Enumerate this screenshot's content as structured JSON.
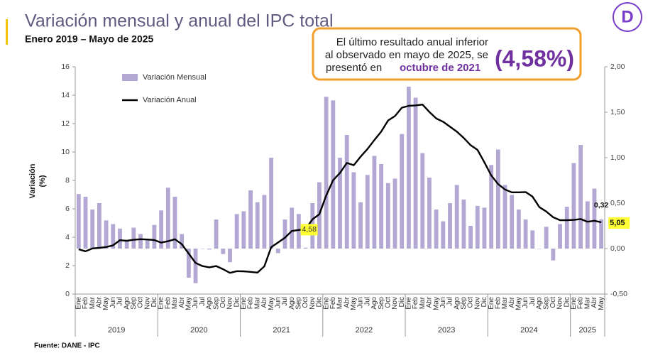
{
  "chart_data": {
    "type": "bar_line",
    "title": "Variación mensual y anual del IPC total",
    "subtitle": "Enero 2019 – Mayo de 2025",
    "y_axis_label": [
      "Variación",
      "(%)"
    ],
    "source": "Fuente: DANE - IPC",
    "logo": "D",
    "callout": {
      "lines": [
        "El último resultado anual inferior",
        "al observado en mayo de 2025, se",
        "presentó en"
      ],
      "highlight": "octubre de 2021",
      "big": "(4,58%)"
    },
    "categories": [
      "Ene",
      "Feb",
      "Mar",
      "Abr",
      "May",
      "Jun",
      "Jul",
      "Ago",
      "Sep",
      "Oct",
      "Nov",
      "Dic",
      "Ene",
      "Feb",
      "Mar",
      "Abr",
      "May",
      "Jun",
      "Jul",
      "Ago",
      "Sep",
      "Oct",
      "Nov",
      "Dic",
      "Ene",
      "Feb",
      "Mar",
      "Abr",
      "May",
      "Jun",
      "Jul",
      "Ago",
      "Sep",
      "Oct",
      "Nov",
      "Dic",
      "Ene",
      "Feb",
      "Mar",
      "Abr",
      "May",
      "Jun",
      "Jul",
      "Ago",
      "Sep",
      "Oct",
      "Nov",
      "Dic",
      "Ene",
      "Feb",
      "Mar",
      "Abr",
      "May",
      "Jun",
      "Jul",
      "Ago",
      "Sep",
      "Oct",
      "Nov",
      "Dic",
      "Ene",
      "Feb",
      "Mar",
      "Abr",
      "May",
      "Jun",
      "Jul",
      "Ago",
      "Sep",
      "Oct",
      "Nov",
      "Dic",
      "Ene",
      "Feb",
      "Mar",
      "Abr",
      "May"
    ],
    "year_groups": [
      "2019",
      "2020",
      "2021",
      "2022",
      "2023",
      "2024",
      "2025"
    ],
    "ylim": [
      0,
      16
    ],
    "yticks": [
      0,
      2,
      4,
      6,
      8,
      10,
      12,
      14,
      16
    ],
    "y2lim": [
      -0.5,
      2
    ],
    "y2ticks": [
      {
        "value": -0.5,
        "label": "-0,50"
      },
      {
        "value": 0,
        "label": "0,00"
      },
      {
        "value": 0.5,
        "label": "0,50"
      },
      {
        "value": 1,
        "label": "1,00"
      },
      {
        "value": 1.5,
        "label": "1,50"
      },
      {
        "value": 2,
        "label": "2,00"
      }
    ],
    "series": [
      {
        "name": "Variación Mensual",
        "type": "bar",
        "axis": "y2",
        "color": "#b3a7d3",
        "values": [
          0.6,
          0.57,
          0.43,
          0.5,
          0.31,
          0.27,
          0.22,
          0.09,
          0.23,
          0.16,
          0.1,
          0.26,
          0.42,
          0.67,
          0.57,
          0.16,
          -0.32,
          -0.38,
          0.0,
          -0.01,
          0.32,
          -0.06,
          -0.15,
          0.38,
          0.41,
          0.64,
          0.51,
          0.59,
          1.0,
          -0.05,
          0.32,
          0.45,
          0.38,
          0.01,
          0.5,
          0.73,
          1.67,
          1.63,
          1.0,
          1.25,
          0.84,
          0.51,
          0.81,
          1.02,
          0.93,
          0.72,
          0.77,
          1.26,
          1.78,
          1.66,
          1.05,
          0.78,
          0.43,
          0.3,
          0.5,
          0.7,
          0.54,
          0.25,
          0.47,
          0.45,
          0.92,
          1.09,
          0.7,
          0.59,
          0.43,
          0.32,
          0.2,
          0.0,
          0.24,
          -0.13,
          0.27,
          0.46,
          0.94,
          1.14,
          0.52,
          0.66,
          0.32
        ],
        "value_labels": [
          null,
          null,
          null,
          null,
          null,
          null,
          null,
          null,
          null,
          null,
          null,
          null,
          null,
          null,
          null,
          null,
          null,
          null,
          null,
          null,
          null,
          null,
          null,
          null,
          null,
          null,
          null,
          null,
          null,
          null,
          null,
          null,
          null,
          null,
          null,
          null,
          null,
          null,
          null,
          null,
          null,
          null,
          null,
          null,
          null,
          null,
          null,
          null,
          null,
          null,
          null,
          null,
          null,
          null,
          null,
          null,
          null,
          null,
          null,
          null,
          null,
          null,
          null,
          null,
          null,
          null,
          null,
          null,
          null,
          null,
          null,
          null,
          null,
          null,
          null,
          null,
          "0,32"
        ]
      },
      {
        "name": "Variación Anual",
        "type": "line",
        "color": "#000000",
        "values": [
          3.15,
          3.01,
          3.21,
          3.25,
          3.31,
          3.43,
          3.79,
          3.75,
          3.82,
          3.86,
          3.84,
          3.8,
          3.62,
          3.72,
          3.86,
          3.51,
          2.85,
          2.19,
          1.97,
          1.88,
          1.97,
          1.75,
          1.49,
          1.61,
          1.6,
          1.56,
          1.51,
          1.95,
          3.3,
          3.63,
          3.97,
          4.44,
          4.51,
          4.58,
          5.26,
          5.62,
          6.94,
          8.01,
          8.53,
          9.23,
          9.07,
          9.67,
          10.21,
          10.84,
          11.44,
          12.22,
          12.53,
          13.12,
          13.25,
          13.28,
          13.34,
          12.82,
          12.36,
          12.13,
          11.78,
          11.43,
          10.99,
          10.48,
          10.15,
          9.28,
          8.35,
          7.74,
          7.36,
          7.16,
          7.16,
          7.18,
          6.86,
          6.12,
          5.81,
          5.41,
          5.2,
          5.2,
          5.22,
          5.28,
          5.09,
          5.16,
          5.05
        ],
        "value_labels": [
          null,
          null,
          null,
          null,
          null,
          null,
          null,
          null,
          null,
          null,
          null,
          null,
          null,
          null,
          null,
          null,
          null,
          null,
          null,
          null,
          null,
          null,
          null,
          null,
          null,
          null,
          null,
          null,
          null,
          null,
          null,
          null,
          null,
          "4,58",
          null,
          null,
          null,
          null,
          null,
          null,
          null,
          null,
          null,
          null,
          null,
          null,
          null,
          null,
          null,
          null,
          null,
          null,
          null,
          null,
          null,
          null,
          null,
          null,
          null,
          null,
          null,
          null,
          null,
          null,
          null,
          null,
          null,
          null,
          null,
          null,
          null,
          null,
          null,
          null,
          null,
          null,
          "5,05"
        ]
      }
    ]
  }
}
